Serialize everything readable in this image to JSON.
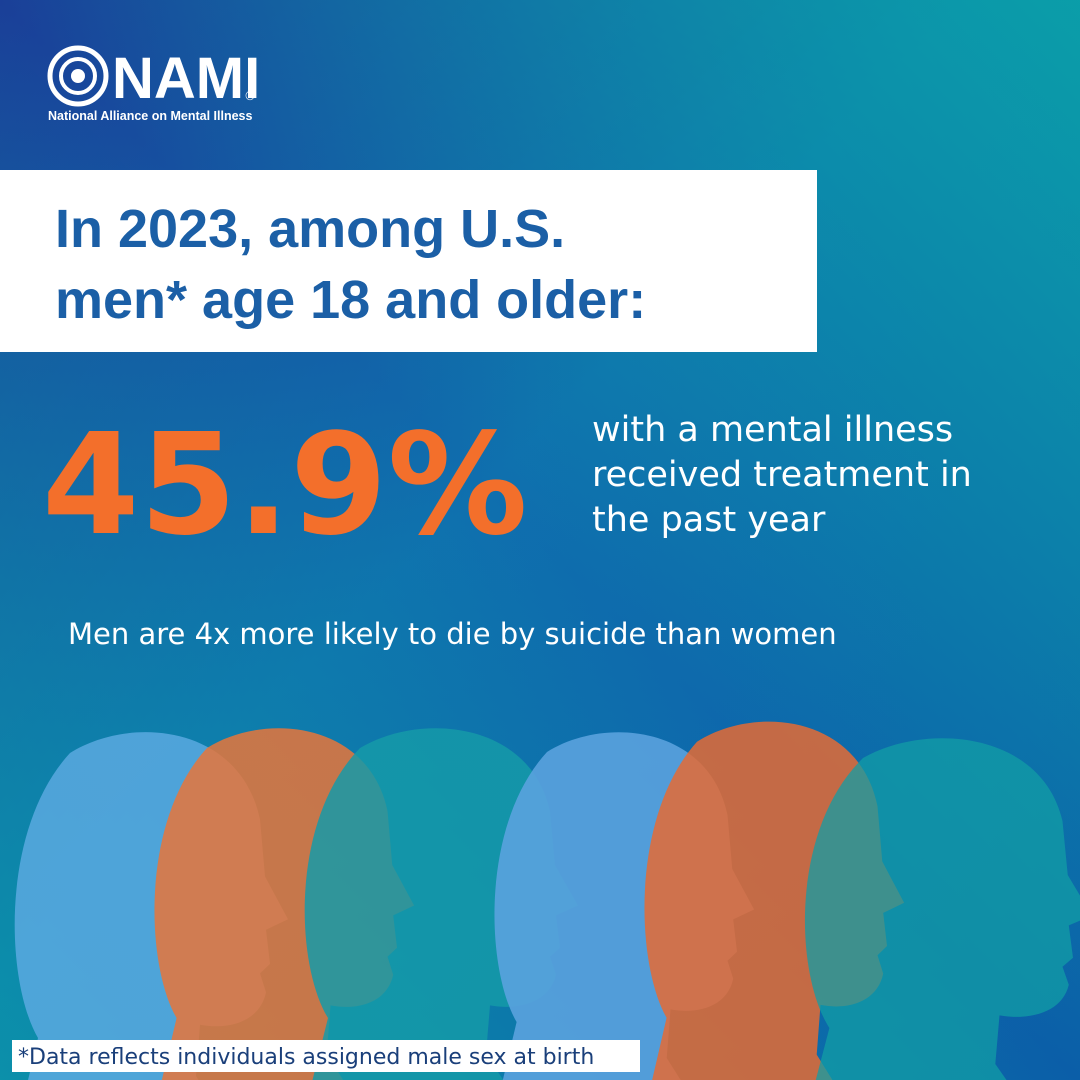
{
  "logo": {
    "name": "NAMI",
    "mark": "®",
    "tagline": "National Alliance on Mental Illness"
  },
  "headline": [
    "In 2023, among U.S.",
    "men* age 18 and older:"
  ],
  "stat": {
    "value": "45.9%",
    "description": [
      "with a mental illness",
      "received treatment in",
      "the past year"
    ]
  },
  "note": "Men are 4x more likely to die by suicide than women",
  "footnote": "*Data reflects individuals assigned male sex at birth"
}
